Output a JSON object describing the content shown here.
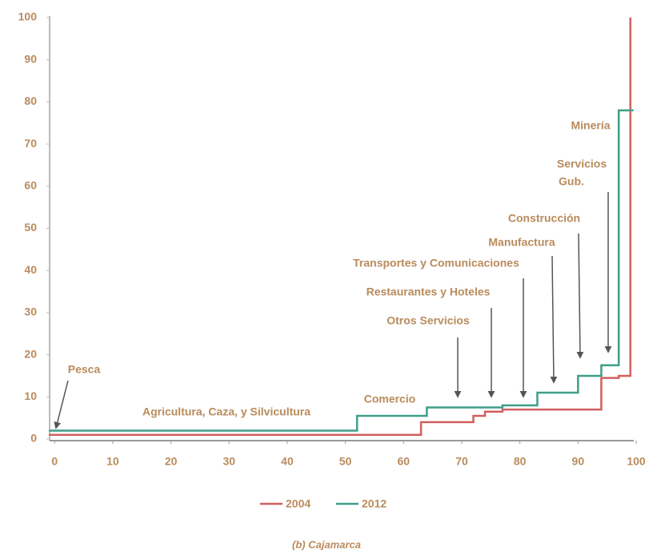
{
  "chart_data": {
    "type": "step",
    "caption": "(b) Cajamarca",
    "xlim": [
      -1,
      100
    ],
    "xticks": [
      0,
      10,
      20,
      30,
      40,
      50,
      60,
      70,
      80,
      90,
      100
    ],
    "ylim": [
      0,
      100
    ],
    "yticks": [
      0,
      10,
      20,
      30,
      40,
      50,
      60,
      70,
      80,
      90,
      100
    ],
    "grid": false,
    "legend": "bottom",
    "series": [
      {
        "name": "2004",
        "color": "#d0605e",
        "x": [
          -1,
          63,
          72,
          74,
          77,
          94,
          97,
          99
        ],
        "values": [
          1,
          4,
          5.5,
          6.5,
          7,
          14.5,
          15,
          100
        ]
      },
      {
        "name": "2012",
        "color": "#3f9e88",
        "x": [
          -1,
          52,
          64,
          77,
          83,
          90,
          94,
          97,
          99
        ],
        "values": [
          2,
          5.5,
          7.5,
          8,
          11,
          15,
          17.5,
          78,
          78
        ]
      }
    ],
    "annotations": [
      {
        "text": "Pesca"
      },
      {
        "text": "Agricultura, Caza, y Silvicultura"
      },
      {
        "text": "Comercio"
      },
      {
        "text": "Otros Servicios"
      },
      {
        "text": "Restaurantes y Hoteles"
      },
      {
        "text": "Transportes y Comunicaciones"
      },
      {
        "text": "Manufactura"
      },
      {
        "text": "Construcción"
      },
      {
        "lines": [
          "Servicios",
          "Gub."
        ]
      },
      {
        "text": "Minería"
      }
    ]
  }
}
